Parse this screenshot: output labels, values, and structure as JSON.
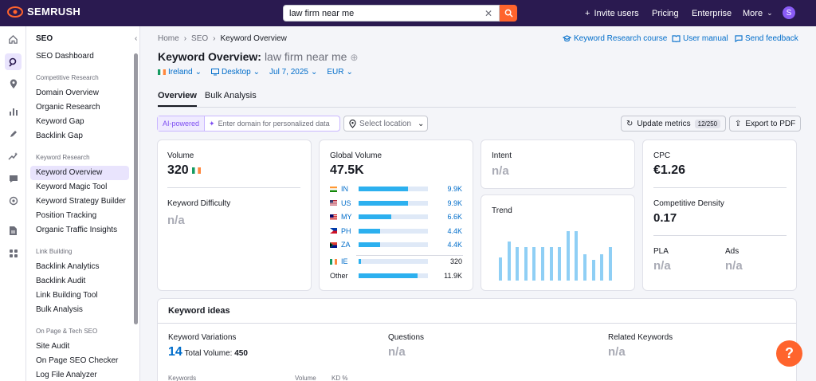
{
  "topbar": {
    "brand": "SEMRUSH",
    "search_value": "law firm near me",
    "nav": {
      "invite": "Invite users",
      "pricing": "Pricing",
      "enterprise": "Enterprise",
      "more": "More"
    },
    "avatar_initial": "S"
  },
  "sidebar": {
    "section_title": "SEO",
    "dashboard": "SEO Dashboard",
    "groups": [
      {
        "heading": "Competitive Research",
        "items": [
          "Domain Overview",
          "Organic Research",
          "Keyword Gap",
          "Backlink Gap"
        ]
      },
      {
        "heading": "Keyword Research",
        "items": [
          "Keyword Overview",
          "Keyword Magic Tool",
          "Keyword Strategy Builder",
          "Position Tracking",
          "Organic Traffic Insights"
        ]
      },
      {
        "heading": "Link Building",
        "items": [
          "Backlink Analytics",
          "Backlink Audit",
          "Link Building Tool",
          "Bulk Analysis"
        ]
      },
      {
        "heading": "On Page & Tech SEO",
        "items": [
          "Site Audit",
          "On Page SEO Checker",
          "Log File Analyzer"
        ]
      }
    ],
    "active_item": "Keyword Overview"
  },
  "breadcrumb": {
    "home": "Home",
    "seo": "SEO",
    "current": "Keyword Overview"
  },
  "toplinks": {
    "course": "Keyword Research course",
    "manual": "User manual",
    "feedback": "Send feedback"
  },
  "page": {
    "title": "Keyword Overview:",
    "keyword": "law firm near me"
  },
  "filters": {
    "country": "Ireland",
    "device": "Desktop",
    "date": "Jul 7, 2025",
    "currency": "EUR"
  },
  "tabs": {
    "overview": "Overview",
    "bulk": "Bulk Analysis"
  },
  "toolbar": {
    "ai_badge": "AI-powered",
    "domain_placeholder": "Enter domain for personalized data",
    "location_placeholder": "Select location",
    "update_metrics": "Update metrics",
    "update_count": "12/250",
    "export": "Export to PDF"
  },
  "volume_card": {
    "label": "Volume",
    "value": "320",
    "kd_label": "Keyword Difficulty",
    "kd_value": "n/a"
  },
  "global_card": {
    "label": "Global Volume",
    "value": "47.5K",
    "rows": [
      {
        "code": "IN",
        "value": "9.9K",
        "share": 0.21
      },
      {
        "code": "US",
        "value": "9.9K",
        "share": 0.21
      },
      {
        "code": "MY",
        "value": "6.6K",
        "share": 0.14
      },
      {
        "code": "PH",
        "value": "4.4K",
        "share": 0.09
      },
      {
        "code": "ZA",
        "value": "4.4K",
        "share": 0.09
      }
    ],
    "ie": {
      "code": "IE",
      "value": "320",
      "share": 0.01
    },
    "other": {
      "code": "Other",
      "value": "11.9K",
      "share": 0.25
    }
  },
  "intent_card": {
    "label": "Intent",
    "value": "n/a"
  },
  "trend_card": {
    "label": "Trend",
    "bars": [
      0.35,
      0.58,
      0.5,
      0.5,
      0.5,
      0.5,
      0.5,
      0.5,
      0.74,
      0.74,
      0.39,
      0.31,
      0.39,
      0.5
    ]
  },
  "cpc_card": {
    "cpc_label": "CPC",
    "cpc_value": "€1.26",
    "density_label": "Competitive Density",
    "density_value": "0.17",
    "pla_label": "PLA",
    "pla_value": "n/a",
    "ads_label": "Ads",
    "ads_value": "n/a"
  },
  "ideas": {
    "title": "Keyword ideas",
    "variations_label": "Keyword Variations",
    "variations_count": "14",
    "total_volume_label": "Total Volume:",
    "total_volume": "450",
    "questions_label": "Questions",
    "questions_value": "n/a",
    "related_label": "Related Keywords",
    "related_value": "n/a",
    "col_keywords": "Keywords",
    "col_volume": "Volume",
    "col_kd": "KD %"
  },
  "help": "?"
}
